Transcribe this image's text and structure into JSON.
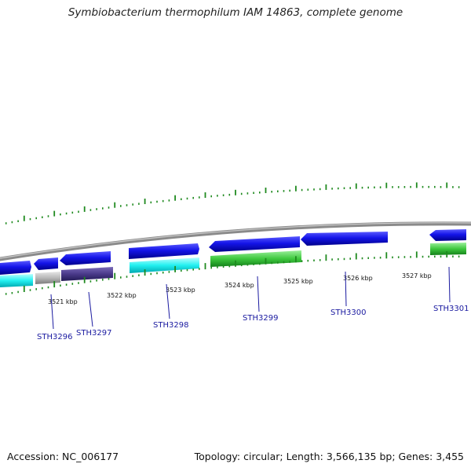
{
  "title": "Symbiobacterium thermophilum IAM 14863, complete genome",
  "footer": {
    "accession": "Accession: NC_006177",
    "summary": "Topology: circular; Length: 3,566,135 bp; Genes: 3,455"
  },
  "colors": {
    "backbone": "#8a8a8a",
    "tick": "#1f8a1f",
    "gene_label": "#1a1aa0",
    "cds_blue": "#1010e0",
    "cds_cyan": "#22f0f0",
    "cds_gray": "#b8b8b8",
    "cds_indigo": "#4a3a8a",
    "cds_green": "#3ec83e"
  },
  "scale_labels": [
    "3521 kbp",
    "3522 kbp",
    "3523 kbp",
    "3524 kbp",
    "3525 kbp",
    "3526 kbp",
    "3527 kbp"
  ],
  "gene_labels": [
    "STH3296",
    "STH3297",
    "STH3298",
    "STH3299",
    "STH3300",
    "STH3301"
  ]
}
